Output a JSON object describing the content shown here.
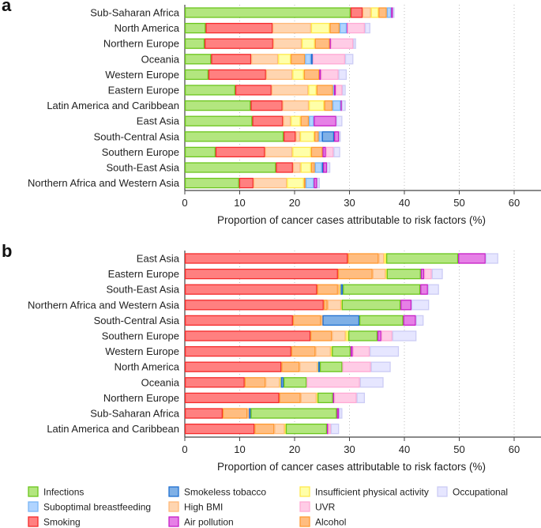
{
  "legend": [
    {
      "name": "Infections",
      "fill": "#b3e67f",
      "stroke": "#6cc51d"
    },
    {
      "name": "Suboptimal breastfeeding",
      "fill": "#b0d4ff",
      "stroke": "#7ab5f5"
    },
    {
      "name": "Smoking",
      "fill": "#ff8080",
      "stroke": "#f52b2b"
    },
    {
      "name": "Smokeless tobacco",
      "fill": "#7fb0e6",
      "stroke": "#1f6fd0"
    },
    {
      "name": "High BMI",
      "fill": "#ffd5b0",
      "stroke": "#ffb97a"
    },
    {
      "name": "Air pollution",
      "fill": "#e680e6",
      "stroke": "#c61ec6"
    },
    {
      "name": "Insufficient physical activity",
      "fill": "#ffffa8",
      "stroke": "#ffe94d"
    },
    {
      "name": "UVR",
      "fill": "#ffcce6",
      "stroke": "#ffaad4"
    },
    {
      "name": "Alcohol",
      "fill": "#ffbd80",
      "stroke": "#ff9a33"
    },
    {
      "name": "Occupational",
      "fill": "#e6e6ff",
      "stroke": "#ccccf5"
    }
  ],
  "chart_data": [
    {
      "panel": "a",
      "type": "bar",
      "orientation": "horizontal",
      "stacked": true,
      "xlabel": "Proportion of cancer cases attributable to risk factors (%)",
      "xlim": [
        0,
        65
      ],
      "xticks": [
        0,
        10,
        20,
        30,
        40,
        50,
        60
      ],
      "grid": "vertical dotted",
      "categories": [
        "Sub-Saharan Africa",
        "North America",
        "Northern Europe",
        "Oceania",
        "Western Europe",
        "Eastern Europe",
        "Latin America and Caribbean",
        "East Asia",
        "South-Central Asia",
        "Southern Europe",
        "South-East Asia",
        "Northern Africa and Western Asia"
      ],
      "series": [
        {
          "name": "Infections",
          "values": [
            30.2,
            3.8,
            3.6,
            4.8,
            4.3,
            9.2,
            12.0,
            12.3,
            18.0,
            5.6,
            16.6,
            9.9
          ]
        },
        {
          "name": "Smoking",
          "values": [
            2.2,
            12.2,
            12.5,
            7.3,
            10.5,
            6.6,
            5.8,
            5.6,
            2.2,
            9.0,
            3.1,
            2.6
          ]
        },
        {
          "name": "High BMI",
          "values": [
            1.5,
            7.0,
            5.2,
            4.9,
            4.8,
            6.7,
            4.8,
            1.4,
            0.8,
            5.0,
            1.4,
            6.1
          ]
        },
        {
          "name": "Insufficient physical activity",
          "values": [
            1.4,
            3.4,
            2.4,
            2.3,
            2.1,
            1.5,
            2.8,
            1.8,
            2.6,
            3.4,
            1.9,
            3.1
          ]
        },
        {
          "name": "Alcohol",
          "values": [
            1.5,
            1.8,
            2.7,
            2.6,
            2.8,
            3.0,
            1.5,
            1.5,
            0.8,
            2.1,
            0.7,
            0.3
          ]
        },
        {
          "name": "Suboptimal breastfeeding",
          "values": [
            0.8,
            1.3,
            0,
            1.1,
            0,
            0.2,
            1.5,
            0.9,
            0.6,
            0,
            1.3,
            1.5
          ]
        },
        {
          "name": "Smokeless tobacco",
          "values": [
            0,
            0,
            0,
            0.3,
            0,
            0,
            0,
            0,
            2.2,
            0,
            0.2,
            0
          ]
        },
        {
          "name": "Air pollution",
          "values": [
            0.3,
            0.1,
            0.2,
            0,
            0.3,
            0.3,
            0.2,
            4.1,
            0.9,
            0.6,
            0.7,
            0.6
          ]
        },
        {
          "name": "UVR",
          "values": [
            0,
            3.2,
            4.1,
            5.9,
            3.2,
            1.2,
            0,
            0,
            0,
            1.4,
            0,
            0
          ]
        },
        {
          "name": "Occupational",
          "values": [
            0.3,
            1.0,
            0.5,
            1.5,
            1.5,
            0.6,
            0.7,
            1.1,
            0.3,
            1.2,
            0.6,
            0.5
          ]
        }
      ]
    },
    {
      "panel": "b",
      "type": "bar",
      "orientation": "horizontal",
      "stacked": true,
      "xlabel": "Proportion of cancer cases attributable to risk factors (%)",
      "xlim": [
        0,
        65
      ],
      "xticks": [
        0,
        10,
        20,
        30,
        40,
        50,
        60
      ],
      "grid": "vertical dotted",
      "categories": [
        "East Asia",
        "Eastern Europe",
        "South-East Asia",
        "Northern Africa and Western Asia",
        "South-Central Asia",
        "Southern Europe",
        "Western Europe",
        "North America",
        "Oceania",
        "Northern Europe",
        "Sub-Saharan Africa",
        "Latin America and Caribbean"
      ],
      "series": [
        {
          "name": "Smoking",
          "values": [
            29.7,
            27.9,
            24.1,
            25.3,
            19.7,
            22.9,
            19.4,
            17.6,
            10.9,
            17.2,
            6.9,
            12.7
          ]
        },
        {
          "name": "Alcohol",
          "values": [
            5.6,
            6.3,
            3.8,
            0.7,
            5.1,
            3.9,
            4.4,
            3.3,
            3.8,
            3.9,
            4.5,
            3.6
          ]
        },
        {
          "name": "High BMI",
          "values": [
            1.0,
            2.4,
            0.3,
            2.5,
            0.3,
            2.5,
            2.8,
            3.3,
            2.6,
            2.9,
            0.3,
            1.9
          ]
        },
        {
          "name": "Insufficient physical activity",
          "values": [
            0.4,
            0.2,
            0.2,
            0.1,
            0,
            0.5,
            0.2,
            0.1,
            0.2,
            0.2,
            0,
            0.2
          ]
        },
        {
          "name": "Smokeless tobacco",
          "values": [
            0,
            0,
            0.4,
            0,
            6.7,
            0,
            0,
            0.3,
            0.5,
            0,
            0.3,
            0
          ]
        },
        {
          "name": "Infections",
          "values": [
            13.1,
            6.2,
            14.1,
            10.7,
            8.0,
            5.3,
            3.4,
            4.1,
            4.2,
            2.8,
            15.7,
            7.5
          ]
        },
        {
          "name": "Air pollution",
          "values": [
            5.0,
            0.6,
            1.4,
            2.0,
            2.3,
            0.7,
            0.4,
            0,
            0,
            0.2,
            0.4,
            0.2
          ]
        },
        {
          "name": "UVR",
          "values": [
            0,
            1.4,
            0,
            0,
            0,
            2.0,
            3.1,
            5.2,
            9.7,
            4.1,
            0,
            0.5
          ]
        },
        {
          "name": "Occupational",
          "values": [
            2.3,
            2.0,
            2.0,
            3.2,
            1.4,
            4.4,
            5.3,
            3.6,
            4.3,
            1.5,
            0.6,
            1.5
          ]
        }
      ]
    }
  ]
}
